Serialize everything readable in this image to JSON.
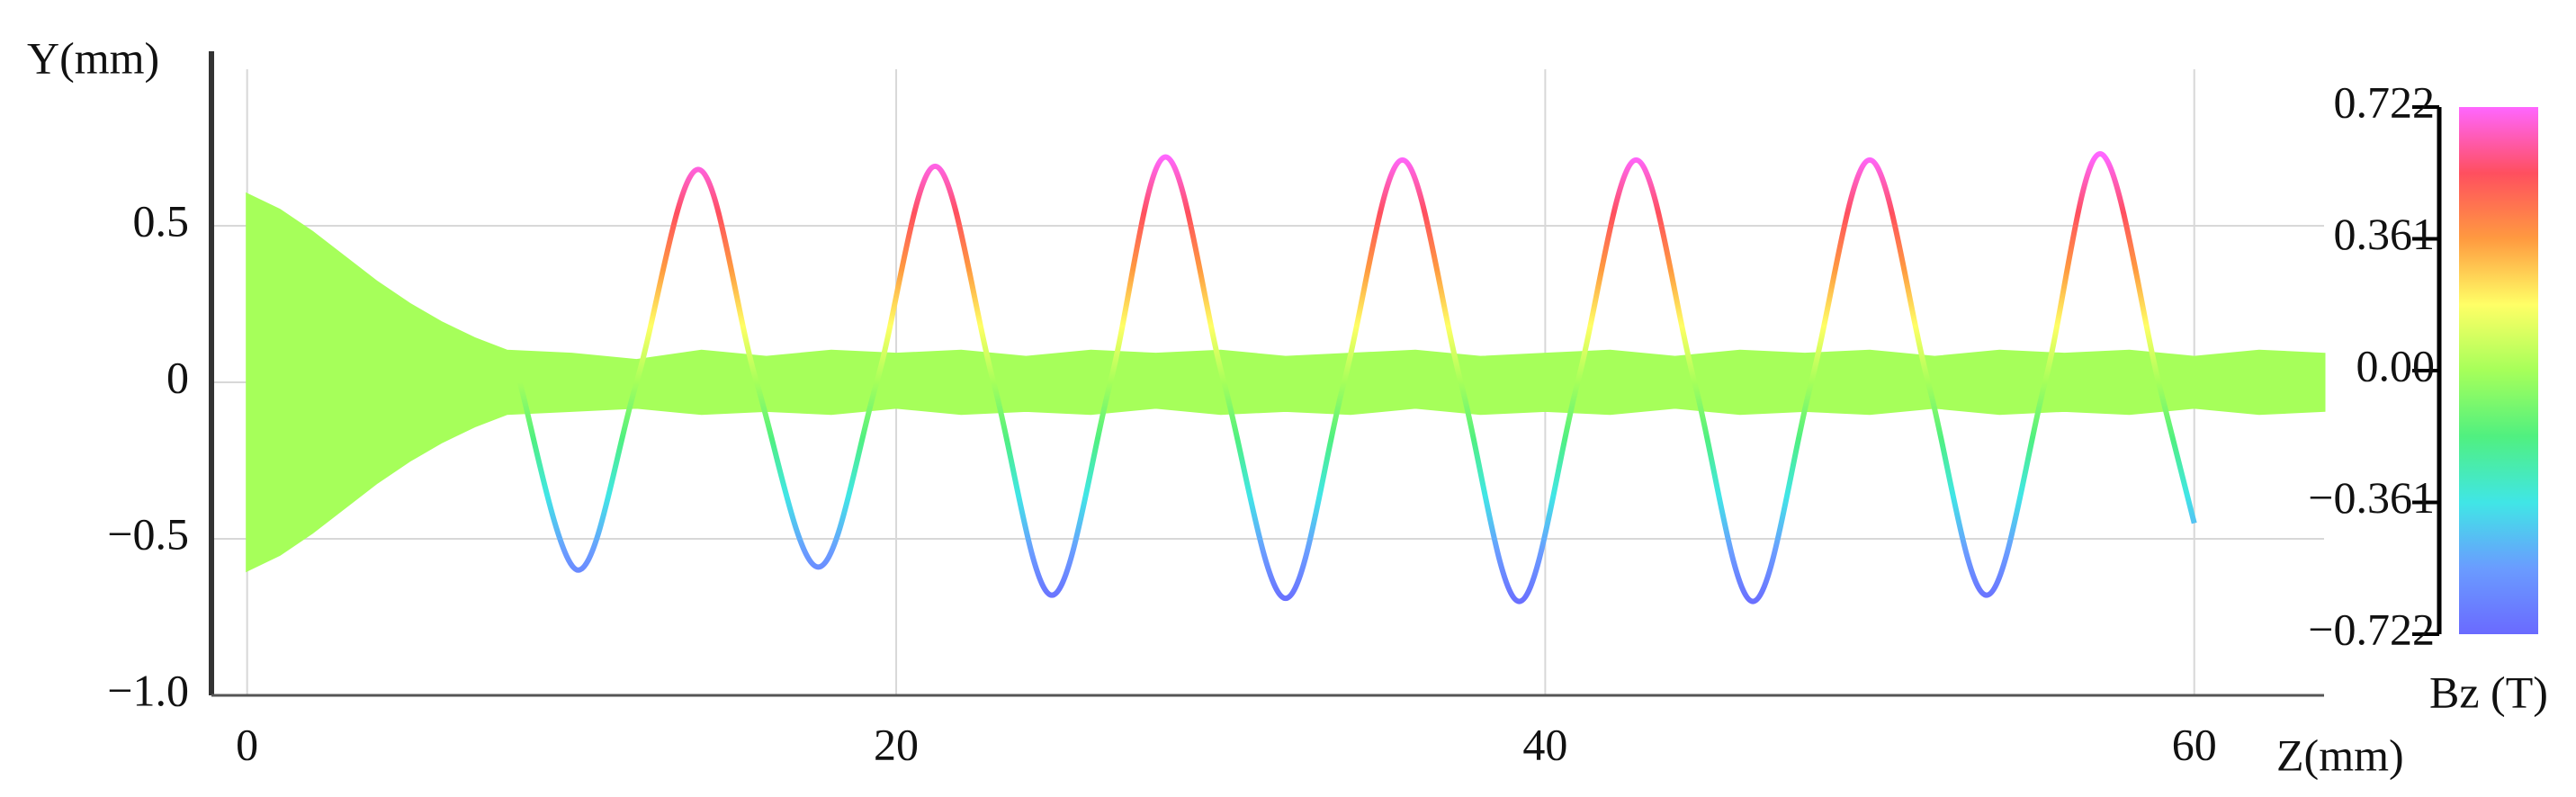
{
  "chart_data": {
    "type": "line",
    "y_label": "Y(mm)",
    "x_label": "Z(mm)",
    "colorbar_label": "Bz (T)",
    "xlim": [
      -1.1,
      64
    ],
    "ylim": [
      -1.0,
      1.0
    ],
    "xticks": [
      0,
      20,
      40,
      60
    ],
    "yticks": [
      {
        "value": -1.0,
        "label": "−1.0"
      },
      {
        "value": -0.5,
        "label": "−0.5"
      },
      0,
      0.5
    ],
    "grid": true,
    "colorbar_ticks": [
      0.722,
      0.361,
      {
        "value": 0,
        "label": "0.00"
      },
      {
        "value": -0.361,
        "label": "−0.361"
      },
      {
        "value": -0.722,
        "label": "−0.722"
      }
    ],
    "colormap": [
      "#ff66ff",
      "#ff4f5f",
      "#ff9a40",
      "#ffff66",
      "#a6ff5a",
      "#50f080",
      "#40e6e6",
      "#6a9cff",
      "#6a6aff"
    ],
    "envelope": {
      "color": "#a6ff5a",
      "x": [
        0,
        1,
        2,
        3,
        4,
        5,
        6,
        7,
        8,
        10,
        12,
        14,
        16,
        18,
        20,
        22,
        24,
        26,
        28,
        30,
        32,
        34,
        36,
        38,
        40,
        42,
        44,
        46,
        48,
        50,
        52,
        54,
        56,
        58,
        60,
        62,
        64
      ],
      "upper": [
        0.6,
        0.55,
        0.48,
        0.4,
        0.32,
        0.25,
        0.19,
        0.14,
        0.1,
        0.09,
        0.07,
        0.1,
        0.08,
        0.1,
        0.09,
        0.1,
        0.08,
        0.1,
        0.09,
        0.1,
        0.08,
        0.09,
        0.1,
        0.08,
        0.09,
        0.1,
        0.08,
        0.1,
        0.09,
        0.1,
        0.08,
        0.1,
        0.09,
        0.1,
        0.08,
        0.1,
        0.09
      ],
      "lower": [
        -0.6,
        -0.55,
        -0.48,
        -0.4,
        -0.32,
        -0.25,
        -0.19,
        -0.14,
        -0.1,
        -0.09,
        -0.08,
        -0.1,
        -0.09,
        -0.1,
        -0.08,
        -0.1,
        -0.09,
        -0.1,
        -0.08,
        -0.1,
        -0.09,
        -0.1,
        -0.08,
        -0.1,
        -0.09,
        -0.1,
        -0.08,
        -0.1,
        -0.09,
        -0.1,
        -0.08,
        -0.1,
        -0.09,
        -0.1,
        -0.08,
        -0.1,
        -0.09
      ]
    },
    "trajectory": {
      "x": [
        8.4,
        10.2,
        12.0,
        13.9,
        15.7,
        17.6,
        19.4,
        21.2,
        23.0,
        24.8,
        26.6,
        28.3,
        30.1,
        32.0,
        33.8,
        35.6,
        37.4,
        39.2,
        41.0,
        42.8,
        44.6,
        46.4,
        48.2,
        50.0,
        51.8,
        53.6,
        55.4,
        57.1,
        58.9,
        60.0
      ],
      "y": [
        0,
        -0.6,
        0,
        0.68,
        0,
        -0.59,
        0,
        0.69,
        0,
        -0.68,
        0,
        0.72,
        0,
        -0.69,
        0,
        0.71,
        0,
        -0.7,
        0,
        0.71,
        0,
        -0.7,
        0,
        0.71,
        0,
        -0.68,
        0,
        0.73,
        0,
        -0.45
      ]
    }
  }
}
